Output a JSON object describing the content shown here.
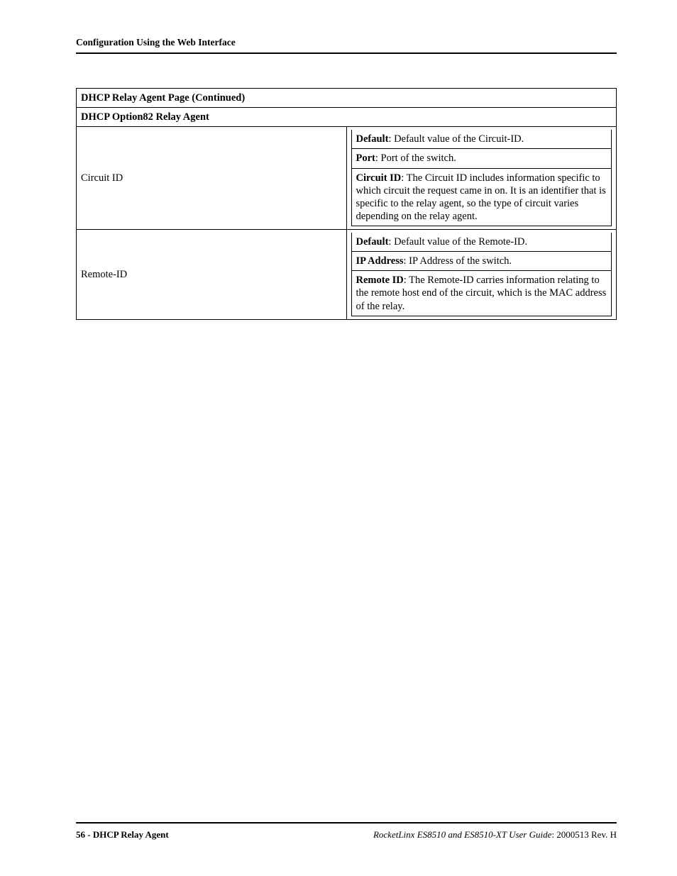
{
  "header": "Configuration Using the Web Interface",
  "tableTitle": "DHCP Relay Agent Page  (Continued)",
  "sectionTitle": "DHCP Option82 Relay Agent",
  "rows": [
    {
      "label": "Circuit ID",
      "items": [
        {
          "b": "Default",
          "rest": ": Default value of the Circuit-ID."
        },
        {
          "b": "Port",
          "rest": ": Port of the switch."
        },
        {
          "b": "Circuit ID",
          "rest": ": The Circuit ID includes information specific to which circuit the request came in on. It is an identifier that is specific to the relay agent, so the type of circuit varies depending on the relay agent."
        }
      ]
    },
    {
      "label": "Remote-ID",
      "items": [
        {
          "b": "Default",
          "rest": ": Default value of the Remote-ID."
        },
        {
          "b": "IP Address",
          "rest": ": IP Address of the switch."
        },
        {
          "b": "Remote ID",
          "rest": ": The Remote-ID carries information relating to the remote host end of the circuit, which is the MAC address of the relay."
        }
      ]
    }
  ],
  "footer": {
    "leftPage": "56 - DHCP Relay Agent",
    "rightItalic": "RocketLinx ES8510  and ES8510-XT User Guide",
    "rightRest": ": 2000513 Rev. H"
  }
}
